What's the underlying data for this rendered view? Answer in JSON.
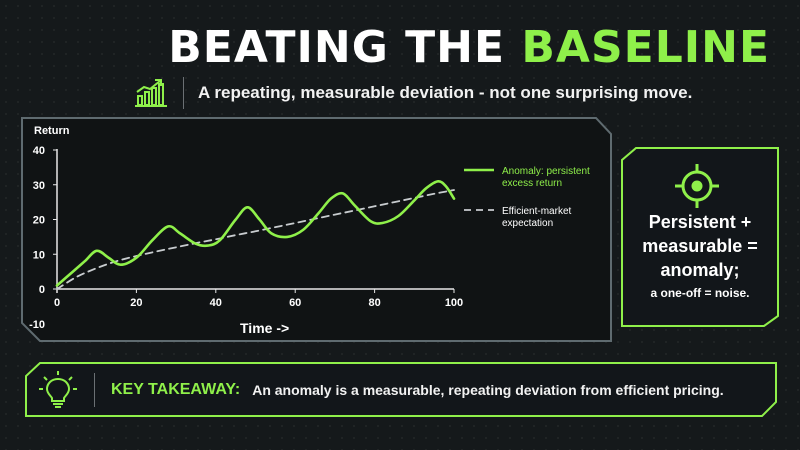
{
  "title": {
    "part1": "BEATING THE",
    "part2": "BASELINE"
  },
  "subtitle": "A repeating, measurable deviation - not one surprising move.",
  "icons": {
    "subtitle": "bar-chart-trend-icon",
    "side": "target-icon",
    "key": "lightbulb-icon"
  },
  "colors": {
    "accent": "#8ff04a",
    "background": "#15191b",
    "baseline": "#c8cccf"
  },
  "chart_data": {
    "type": "line",
    "title": "",
    "ylabel": "Return",
    "xlabel": "Time ->",
    "xlim": [
      0,
      100
    ],
    "ylim": [
      -10,
      40
    ],
    "xticks": [
      "0",
      "20",
      "40",
      "60",
      "80",
      "100"
    ],
    "yticks": [
      "-10",
      "0",
      "10",
      "20",
      "30",
      "40"
    ],
    "grid": false,
    "legend_position": "right",
    "series": [
      {
        "name": "Anomaly: persistent excess return",
        "style": "solid",
        "color": "#8ff04a",
        "x": [
          0,
          4,
          7,
          10,
          13,
          16,
          20,
          24,
          28,
          31,
          35,
          38,
          41,
          45,
          48,
          51,
          54,
          58,
          62,
          66,
          69,
          72,
          75,
          79,
          82,
          86,
          90,
          93,
          96,
          98,
          100
        ],
        "y": [
          1,
          5,
          8,
          11,
          9,
          7,
          9,
          14,
          18,
          16,
          13,
          12.5,
          14,
          20,
          23.5,
          20,
          16,
          15,
          17,
          22,
          26,
          27.5,
          24,
          19.5,
          19,
          21,
          25.5,
          29,
          31,
          29.5,
          26
        ]
      },
      {
        "name": "Efficient-market expectation",
        "style": "dashed",
        "color": "#c8cccf",
        "x": [
          0,
          5,
          10,
          15,
          20,
          25,
          30,
          35,
          40,
          45,
          50,
          55,
          60,
          65,
          70,
          75,
          80,
          85,
          90,
          95,
          100
        ],
        "y": [
          0,
          3.5,
          6,
          8,
          9.5,
          10.8,
          12,
          13.2,
          14.3,
          15.5,
          16.6,
          17.8,
          19,
          20.2,
          21.4,
          22.6,
          23.8,
          25,
          26.2,
          27.4,
          28.5
        ]
      }
    ]
  },
  "side_panel": {
    "main": "Persistent + measurable = anomaly;",
    "small": "a one-off = noise."
  },
  "key_takeaway": {
    "label": "KEY TAKEAWAY:",
    "text": "An anomaly is a measurable, repeating deviation from efficient pricing."
  }
}
